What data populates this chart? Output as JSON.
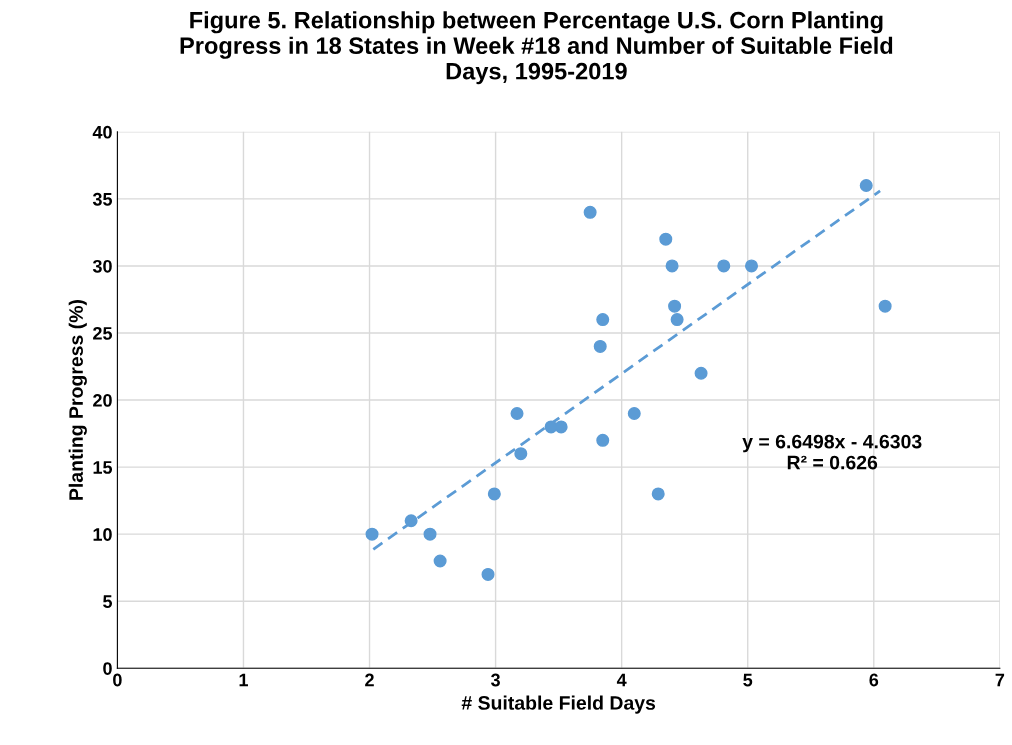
{
  "chart_data": {
    "type": "scatter",
    "title": "Figure 5. Relationship between Percentage U.S. Corn Planting\nProgress in 18 States in Week #18 and Number of Suitable Field\nDays, 1995-2019",
    "xlabel": "# Suitable Field Days",
    "ylabel": "Planting Progress (%)",
    "series": [
      {
        "color": "#5b9bd5",
        "marker": "circle",
        "x": [
          2.02,
          2.33,
          2.48,
          2.56,
          2.94,
          2.99,
          3.17,
          3.2,
          3.44,
          3.52,
          3.75,
          3.83,
          3.85,
          3.85,
          4.1,
          4.29,
          4.35,
          4.4,
          4.42,
          4.44,
          4.63,
          4.81,
          5.03,
          5.94,
          6.09
        ],
        "values": [
          10,
          11,
          10,
          8,
          7,
          13,
          19,
          16,
          18,
          18,
          34,
          24,
          26,
          17,
          19,
          13,
          32,
          30,
          27,
          26,
          22,
          30,
          30,
          36,
          27
        ]
      },
      {
        "type": "line",
        "color": "#5b9bd5",
        "line_style": "dashed",
        "marker": "none",
        "x": [
          2.03,
          6.05
        ],
        "values": [
          8.87,
          35.6
        ]
      }
    ],
    "annotations": [
      "y = 6.6498x - 4.6303\nR² = 0.626"
    ],
    "xlim": [
      0,
      7
    ],
    "xticks": [
      0,
      1,
      2,
      3,
      4,
      5,
      6,
      7
    ],
    "ylim": [
      0,
      40
    ],
    "yticks": [
      0,
      5,
      10,
      15,
      20,
      25,
      30,
      35,
      40
    ],
    "grid": true,
    "legend": false
  }
}
